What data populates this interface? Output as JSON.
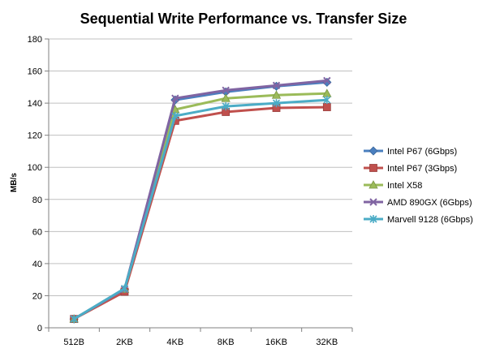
{
  "chart_data": {
    "type": "line",
    "title": "Sequential Write Performance vs. Transfer Size",
    "xlabel": "",
    "ylabel": "MB/s",
    "ylim": [
      0,
      180
    ],
    "yticks": [
      0,
      20,
      40,
      60,
      80,
      100,
      120,
      140,
      160,
      180
    ],
    "grid": "horizontal",
    "legend_position": "right",
    "categories": [
      "512B",
      "2KB",
      "4KB",
      "8KB",
      "16KB",
      "32KB"
    ],
    "series": [
      {
        "name": "Intel P67 (6Gbps)",
        "color": "#4a7fbf",
        "marker": "diamond",
        "values": [
          5.5,
          24,
          142,
          147,
          150.5,
          153
        ]
      },
      {
        "name": "Intel P67 (3Gbps)",
        "color": "#c0504d",
        "marker": "square",
        "values": [
          5.5,
          22.5,
          129,
          134.5,
          137,
          137.5
        ]
      },
      {
        "name": "Intel X58",
        "color": "#9bbb59",
        "marker": "triangle",
        "values": [
          5.5,
          24,
          136,
          143,
          145,
          146
        ]
      },
      {
        "name": "AMD 890GX (6Gbps)",
        "color": "#8064a2",
        "marker": "x",
        "values": [
          5.5,
          24,
          143,
          148,
          151,
          154
        ]
      },
      {
        "name": "Marvell 9128 (6Gbps)",
        "color": "#4bacc6",
        "marker": "star",
        "values": [
          5.5,
          24.5,
          132,
          138,
          140,
          142
        ]
      }
    ]
  }
}
